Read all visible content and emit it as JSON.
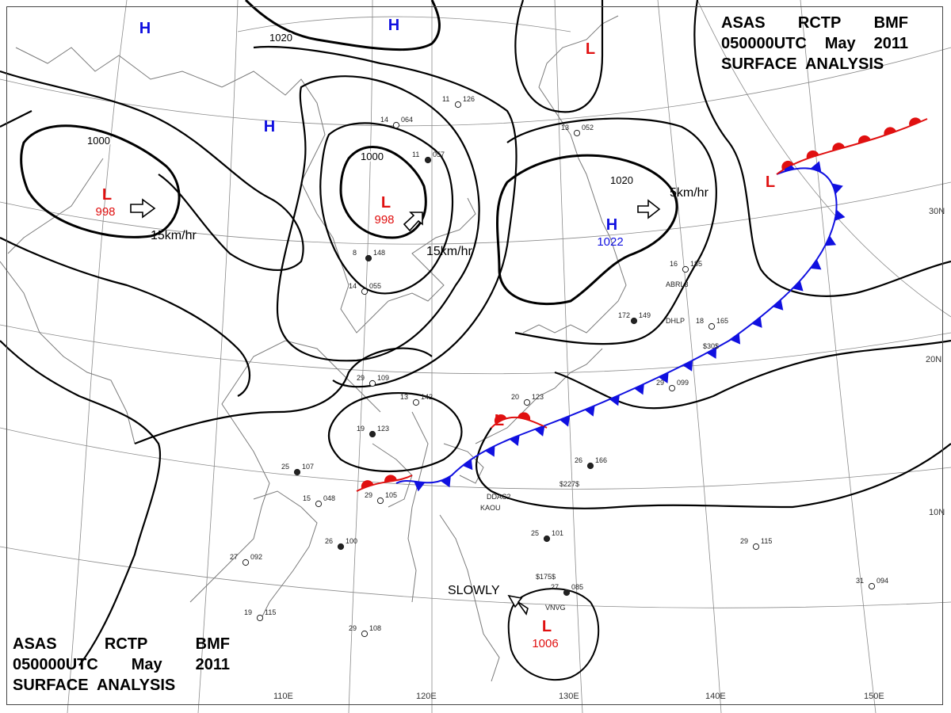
{
  "header_top": {
    "line1": [
      "ASAS",
      "RCTP",
      "BMF"
    ],
    "line2": [
      "050000UTC",
      "May",
      "2011"
    ],
    "line3": "SURFACE  ANALYSIS"
  },
  "header_bottom": {
    "line1": [
      "ASAS",
      "RCTP",
      "BMF"
    ],
    "line2": [
      "050000UTC",
      "May",
      "2011"
    ],
    "line3": "SURFACE  ANALYSIS"
  },
  "colors": {
    "high": "#1010e0",
    "low": "#e01010",
    "isobar": "#000000",
    "grid": "#888888",
    "coast": "#777777"
  },
  "lon_labels": [
    "110E",
    "120E",
    "130E",
    "140E",
    "150E"
  ],
  "lat_labels": [
    "30N",
    "20N",
    "10N"
  ],
  "pressure_centers": [
    {
      "type": "H",
      "pressure": ""
    },
    {
      "type": "H",
      "pressure": ""
    },
    {
      "type": "H",
      "pressure": ""
    },
    {
      "type": "H",
      "pressure": "1022"
    },
    {
      "type": "L",
      "pressure": "998"
    },
    {
      "type": "L",
      "pressure": "998"
    },
    {
      "type": "L",
      "pressure": ""
    },
    {
      "type": "L",
      "pressure": ""
    },
    {
      "type": "L",
      "pressure": ""
    },
    {
      "type": "L",
      "pressure": "1006"
    }
  ],
  "isobar_labels": [
    "1000",
    "1000",
    "1020",
    "1020"
  ],
  "motion_labels": [
    "15km/hr",
    "15km/hr",
    "5km/hr",
    "SLOWLY"
  ],
  "station_labels": [
    "ABRL3",
    "DHLP",
    "VNVG",
    "KAOU",
    "DDAC2",
    "$227$",
    "$175$",
    "$30$"
  ],
  "station_numbers": [
    "19",
    "123",
    "13",
    "142",
    "20",
    "123",
    "26",
    "166",
    "29",
    "115",
    "31",
    "094",
    "27",
    "085",
    "29",
    "108",
    "29",
    "105",
    "25",
    "101",
    "16",
    "185",
    "18",
    "165",
    "172",
    "149",
    "29",
    "099",
    "29",
    "109",
    "26",
    "100",
    "27",
    "092",
    "19",
    "115",
    "25",
    "107",
    "15",
    "048",
    "14",
    "055",
    "8",
    "148",
    "11",
    "126",
    "13",
    "052",
    "11",
    "057",
    "14",
    "064"
  ]
}
